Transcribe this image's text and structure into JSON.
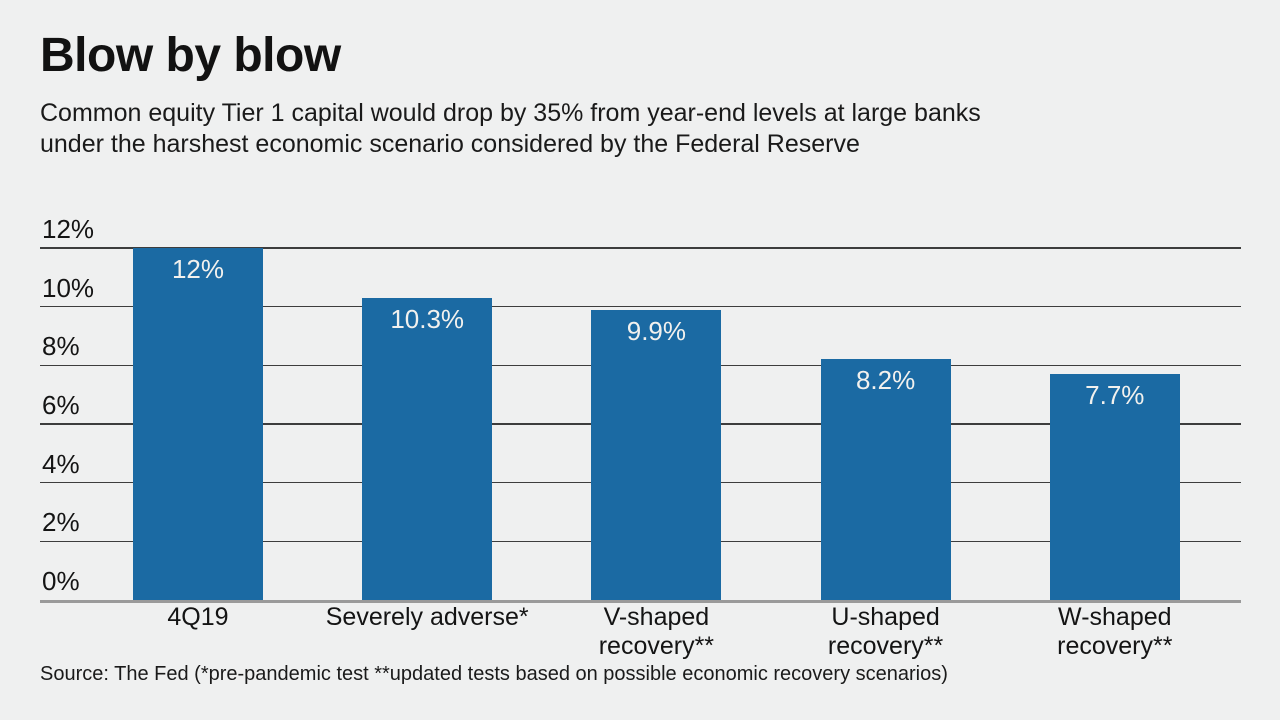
{
  "header": {
    "title": "Blow by blow",
    "subtitle": "Common equity Tier 1 capital would drop by 35% from year-end levels at large banks under the harshest economic scenario considered by the Federal Reserve",
    "subtitle_lines": [
      "Common equity Tier 1 capital would drop by 35% from year-end levels at large banks",
      "under the harshest economic scenario considered by the Federal Reserve"
    ]
  },
  "source_note": "Source: The Fed (*pre-pandemic test **updated tests based on possible economic recovery scenarios)",
  "colors": {
    "background": "#EFF0F0",
    "bar": "#1B6AA3",
    "gridline": "#3D3D3D",
    "baseline": "#9A9A9A",
    "text": "#141414",
    "value_label_text": "#F2F1EE"
  },
  "chart_data": {
    "type": "bar",
    "title": "Blow by blow",
    "xlabel": "",
    "ylabel": "",
    "categories": [
      "4Q19",
      "Severely adverse*",
      "V-shaped recovery**",
      "U-shaped recovery**",
      "W-shaped recovery**"
    ],
    "category_lines": [
      [
        "4Q19"
      ],
      [
        "Severely adverse*"
      ],
      [
        "V-shaped",
        "recovery**"
      ],
      [
        "U-shaped",
        "recovery**"
      ],
      [
        "W-shaped",
        "recovery**"
      ]
    ],
    "values": [
      12,
      10.3,
      9.9,
      8.2,
      7.7
    ],
    "value_labels": [
      "12%",
      "10.3%",
      "9.9%",
      "8.2%",
      "7.7%"
    ],
    "ylim": [
      0,
      12
    ],
    "yticks": [
      0,
      2,
      4,
      6,
      8,
      10,
      12
    ],
    "ytick_labels": [
      "0%",
      "2%",
      "4%",
      "6%",
      "8%",
      "10%",
      "12%"
    ],
    "grid": true,
    "legend_position": "none"
  }
}
